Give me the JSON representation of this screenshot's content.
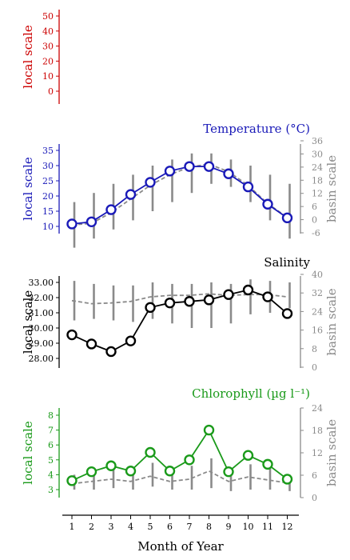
{
  "colors": {
    "top": "#cc0000",
    "temperature": "#1a1ab8",
    "salinity": "#000000",
    "chlorophyll": "#1a9a1a",
    "basin": "#8a8a8a"
  },
  "xlabel": "Month of Year",
  "months": [
    1,
    2,
    3,
    4,
    5,
    6,
    7,
    8,
    9,
    10,
    11,
    12
  ],
  "chart_data": [
    {
      "type": "line",
      "title": "",
      "ylabel": "local scale",
      "ylim": [
        0,
        50
      ],
      "yticks": [
        0,
        10,
        20,
        30,
        40,
        50
      ],
      "series": []
    },
    {
      "type": "line",
      "title": "Temperature (°C)",
      "ylabel": "local scale",
      "y2label": "basin scale",
      "ylim": [
        10,
        35
      ],
      "yticks": [
        10,
        15,
        20,
        25,
        30,
        35
      ],
      "y2lim": [
        -6,
        36
      ],
      "y2ticks": [
        -6,
        0,
        6,
        12,
        18,
        24,
        30,
        36
      ],
      "x": [
        1,
        2,
        3,
        4,
        5,
        6,
        7,
        8,
        9,
        10,
        11,
        12
      ],
      "local": [
        10.8,
        11.5,
        15.5,
        20.5,
        24.5,
        28.2,
        29.7,
        29.7,
        27.3,
        23.0,
        17.3,
        12.8
      ],
      "basin_mean": [
        10.5,
        11,
        14.5,
        19,
        23.5,
        27,
        29.5,
        30.5,
        28,
        23.5,
        17.5,
        13
      ],
      "basin_min": [
        3,
        6,
        9,
        12,
        15,
        18,
        21,
        24,
        23,
        18,
        12,
        6
      ],
      "basin_max": [
        18,
        21,
        24,
        27,
        30,
        32,
        34,
        34,
        32,
        30,
        27,
        24
      ]
    },
    {
      "type": "line",
      "title": "Salinity",
      "ylabel": "local scale",
      "y2label": "basin scale",
      "ylim": [
        28.0,
        33.0
      ],
      "ylim_plot": [
        27.6,
        33.25
      ],
      "yticks": [
        "28.00",
        "29.00",
        "30.00",
        "31.00",
        "32.00",
        "33.00"
      ],
      "y2lim": [
        0,
        40
      ],
      "y2ticks": [
        0,
        8,
        16,
        24,
        32,
        40
      ],
      "x": [
        1,
        2,
        3,
        4,
        5,
        6,
        7,
        8,
        9,
        10,
        11,
        12
      ],
      "local": [
        29.55,
        28.95,
        28.45,
        29.15,
        31.35,
        31.65,
        31.75,
        31.85,
        32.2,
        32.5,
        32.05,
        30.95
      ],
      "basin_mean": [
        31.8,
        31.6,
        31.65,
        31.75,
        32.05,
        32.15,
        32.15,
        32.25,
        32.15,
        32.2,
        32.2,
        32.05
      ],
      "basin_min": [
        30.5,
        30.6,
        30.5,
        30.4,
        30.6,
        30.3,
        30.0,
        30.0,
        30.3,
        30.9,
        31.0,
        31.3
      ],
      "basin_max": [
        33.1,
        32.9,
        32.8,
        32.8,
        33.0,
        32.9,
        32.9,
        33.0,
        32.9,
        33.2,
        33.1,
        33.0
      ]
    },
    {
      "type": "line",
      "title": "Chlorophyll (µg l⁻¹)",
      "ylabel": "local scale",
      "y2label": "basin scale",
      "ylim": [
        2.5,
        8.5
      ],
      "yticks": [
        3,
        4,
        5,
        6,
        7,
        8
      ],
      "y2lim": [
        0,
        24
      ],
      "y2ticks": [
        0,
        6,
        12,
        18,
        24
      ],
      "x": [
        1,
        2,
        3,
        4,
        5,
        6,
        7,
        8,
        9,
        10,
        11,
        12
      ],
      "local": [
        3.6,
        4.2,
        4.6,
        4.25,
        5.5,
        4.25,
        5.0,
        7.0,
        4.2,
        5.3,
        4.7,
        3.7
      ],
      "basin_mean": [
        3.4,
        3.55,
        3.7,
        3.55,
        3.9,
        3.55,
        3.7,
        4.25,
        3.55,
        3.85,
        3.65,
        3.45
      ],
      "basin_min": [
        3.0,
        3.0,
        3.1,
        3.0,
        3.2,
        3.0,
        3.0,
        3.1,
        2.9,
        3.0,
        3.0,
        2.9
      ],
      "basin_max": [
        4.0,
        4.3,
        4.5,
        4.3,
        4.8,
        4.3,
        4.6,
        5.1,
        4.3,
        4.7,
        4.4,
        4.0
      ]
    }
  ]
}
